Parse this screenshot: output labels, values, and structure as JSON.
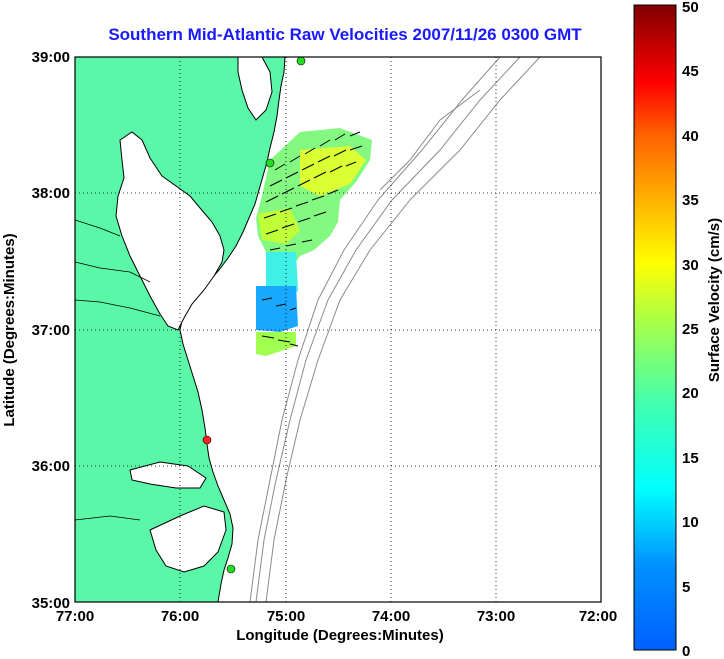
{
  "title": "Southern Mid-Atlantic Raw Velocities 2007/11/26 0300 GMT",
  "x_axis": {
    "label": "Longitude (Degrees:Minutes)",
    "ticks": [
      "77:00",
      "76:00",
      "75:00",
      "74:00",
      "73:00",
      "72:00"
    ],
    "range": [
      -77,
      -72
    ]
  },
  "y_axis": {
    "label": "Latitude (Degrees:Minutes)",
    "ticks": [
      "35:00",
      "36:00",
      "37:00",
      "38:00",
      "39:00"
    ],
    "range": [
      35,
      39
    ]
  },
  "colorbar": {
    "label": "Surface Velocity (cm/s)",
    "ticks": [
      "0",
      "5",
      "10",
      "15",
      "20",
      "25",
      "30",
      "35",
      "40",
      "45",
      "50"
    ],
    "range": [
      0,
      50
    ],
    "colormap": "jet"
  },
  "colors": {
    "land": "#5af7a8",
    "ocean": "#ffffff",
    "coastline": "#000000",
    "bathymetry": "#8c8c8c",
    "grid": "#000000",
    "title": "#1a1aff",
    "site_active": "#22dd22",
    "site_inactive": "#ff2222"
  },
  "radar_sites": [
    {
      "lon": -75.1,
      "lat": 39.0,
      "status": "active"
    },
    {
      "lon": -75.1,
      "lat": 38.2,
      "status": "active"
    },
    {
      "lon": -75.75,
      "lat": 36.18,
      "status": "inactive"
    },
    {
      "lon": -75.48,
      "lat": 35.23,
      "status": "active"
    }
  ],
  "grid": true
}
